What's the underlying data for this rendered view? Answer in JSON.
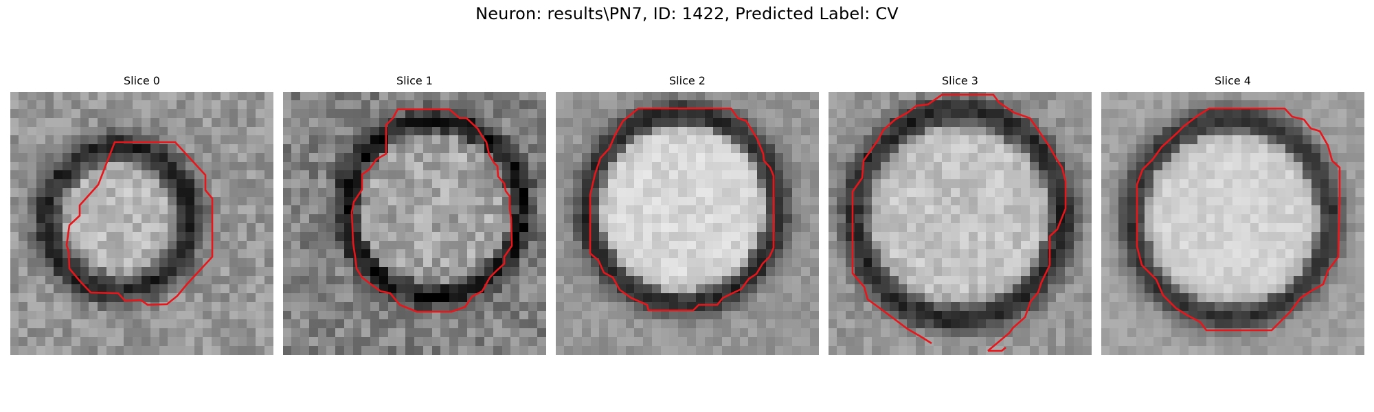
{
  "figure": {
    "title": "Neuron: results\\PN7, ID: 1422, Predicted Label: CV"
  },
  "panels": [
    {
      "title": "Slice 0",
      "contour_color": "#e8161b"
    },
    {
      "title": "Slice 1",
      "contour_color": "#e8161b"
    },
    {
      "title": "Slice 2",
      "contour_color": "#e8161b"
    },
    {
      "title": "Slice 3",
      "contour_color": "#e8161b"
    },
    {
      "title": "Slice 4",
      "contour_color": "#e8161b"
    }
  ]
}
